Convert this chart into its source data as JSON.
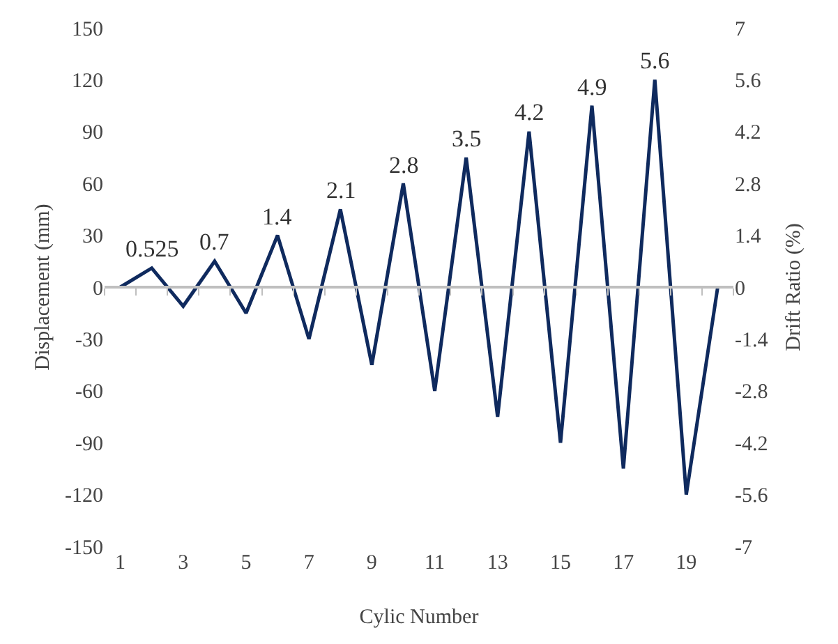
{
  "chart_data": {
    "type": "line",
    "xlabel": "Cylic Number",
    "ylabel": "Displacement (mm)",
    "y2label": "Drift Ratio (%)",
    "x": [
      1,
      2,
      3,
      4,
      5,
      6,
      7,
      8,
      9,
      10,
      11,
      12,
      13,
      14,
      15,
      16,
      17,
      18,
      19,
      20
    ],
    "series": [
      {
        "color": "#0f2a5e",
        "values": [
          0,
          11,
          -11,
          15,
          -15,
          30,
          -30,
          45,
          -45,
          60,
          -60,
          75,
          -75,
          90,
          -90,
          105,
          -105,
          120,
          -120,
          0
        ]
      }
    ],
    "xlim": [
      0.5,
      20.5
    ],
    "xticks": [
      1,
      3,
      5,
      7,
      9,
      11,
      13,
      15,
      17,
      19
    ],
    "ylim": [
      -150,
      150
    ],
    "yticks": [
      -150,
      -120,
      -90,
      -60,
      -30,
      0,
      30,
      60,
      90,
      120,
      150
    ],
    "y2lim": [
      -7,
      7
    ],
    "y2ticks": [
      -7,
      -5.6,
      -4.2,
      -2.8,
      -1.4,
      0,
      1.4,
      2.8,
      4.2,
      5.6,
      7
    ],
    "annotations": [
      {
        "text": "0.525",
        "x": 2,
        "y": 11
      },
      {
        "text": "0.7",
        "x": 4,
        "y": 15
      },
      {
        "text": "1.4",
        "x": 6,
        "y": 30
      },
      {
        "text": "2.1",
        "x": 8,
        "y": 45
      },
      {
        "text": "2.8",
        "x": 10,
        "y": 60
      },
      {
        "text": "3.5",
        "x": 12,
        "y": 75
      },
      {
        "text": "4.2",
        "x": 14,
        "y": 90
      },
      {
        "text": "4.9",
        "x": 16,
        "y": 105
      },
      {
        "text": "5.6",
        "x": 18,
        "y": 120
      }
    ],
    "ref_lines": [
      {
        "axis": "y",
        "value": 0,
        "color": "#bfbfbf"
      }
    ],
    "grid": false,
    "marker": "none",
    "line_style": "solid"
  }
}
